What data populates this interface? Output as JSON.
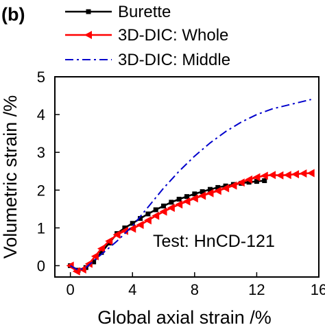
{
  "panel_label": "(b)",
  "annotation": "Test: HnCD-121",
  "chart_data": {
    "type": "line",
    "title": "",
    "xlabel": "Global axial strain /%",
    "ylabel": "Volumetric strain /%",
    "xlim": [
      -1,
      16
    ],
    "ylim": [
      -0.3,
      5
    ],
    "xticks": [
      0,
      4,
      8,
      12,
      16
    ],
    "yticks": [
      0,
      1,
      2,
      3,
      4,
      5
    ],
    "legend_position": "top",
    "series": [
      {
        "name": "Burette",
        "color": "#000000",
        "style": "solid",
        "marker": "square",
        "x": [
          0,
          0.5,
          1.0,
          1.5,
          2.0,
          2.5,
          3.0,
          3.5,
          4.0,
          4.5,
          5.0,
          5.5,
          6.0,
          6.5,
          7.0,
          7.5,
          8.0,
          8.5,
          9.0,
          9.5,
          10.0,
          10.5,
          11.0,
          11.5,
          12.0,
          12.5
        ],
        "y": [
          0.0,
          -0.12,
          -0.05,
          0.1,
          0.35,
          0.6,
          0.85,
          1.0,
          1.12,
          1.25,
          1.37,
          1.48,
          1.58,
          1.68,
          1.76,
          1.83,
          1.9,
          1.96,
          2.02,
          2.07,
          2.11,
          2.15,
          2.18,
          2.21,
          2.23,
          2.25
        ]
      },
      {
        "name": "3D-DIC: Whole",
        "color": "#ff0000",
        "style": "solid",
        "marker": "left-triangle",
        "x": [
          0,
          0.4,
          0.8,
          1.2,
          1.6,
          2.0,
          2.5,
          3.0,
          3.5,
          4.0,
          4.5,
          5.0,
          5.5,
          6.0,
          6.5,
          7.0,
          7.5,
          8.0,
          8.5,
          9.0,
          9.5,
          10.0,
          10.5,
          11.0,
          11.5,
          12.0,
          12.5,
          13.0,
          13.5,
          14.0,
          14.5,
          15.0,
          15.5
        ],
        "y": [
          0.0,
          -0.15,
          -0.1,
          0.05,
          0.25,
          0.45,
          0.65,
          0.82,
          0.92,
          0.98,
          1.08,
          1.2,
          1.32,
          1.43,
          1.53,
          1.62,
          1.7,
          1.78,
          1.85,
          1.92,
          1.98,
          2.05,
          2.12,
          2.2,
          2.28,
          2.34,
          2.38,
          2.4,
          2.39,
          2.4,
          2.42,
          2.44,
          2.45
        ]
      },
      {
        "name": "3D-DIC: Middle",
        "color": "#0000cc",
        "style": "dashdot",
        "marker": "none",
        "x": [
          0,
          0.5,
          1,
          2,
          3,
          4,
          5,
          6,
          7,
          8,
          9,
          10,
          11,
          12,
          13,
          14,
          15,
          15.5
        ],
        "y": [
          0.0,
          -0.12,
          -0.05,
          0.3,
          0.65,
          1.05,
          1.55,
          2.05,
          2.5,
          2.9,
          3.25,
          3.55,
          3.8,
          4.0,
          4.15,
          4.25,
          4.35,
          4.4
        ]
      }
    ]
  }
}
